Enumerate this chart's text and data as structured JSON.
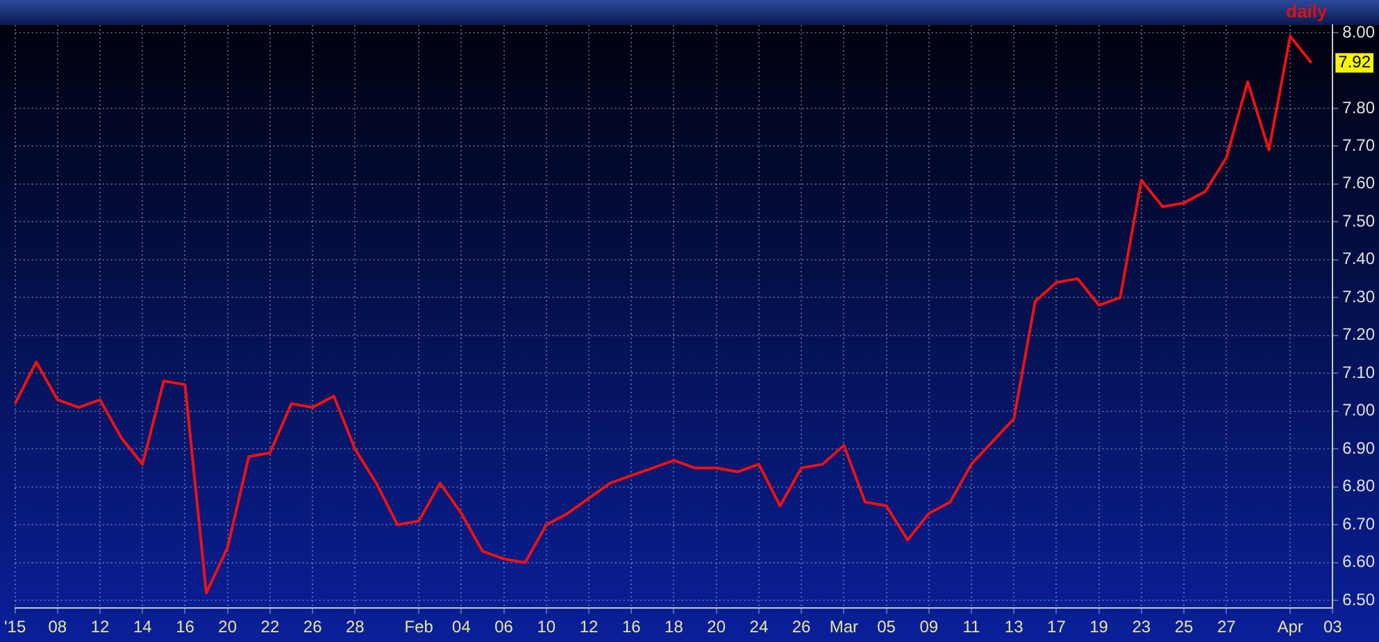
{
  "chart_data": {
    "type": "line",
    "categories": [
      "'15",
      null,
      "08",
      null,
      "12",
      null,
      "14",
      null,
      "16",
      null,
      "20",
      null,
      "22",
      null,
      "26",
      null,
      "28",
      null,
      null,
      "Feb",
      null,
      "04",
      null,
      "06",
      null,
      "10",
      null,
      "12",
      null,
      "16",
      null,
      "18",
      null,
      "20",
      null,
      "24",
      null,
      "26",
      null,
      "Mar",
      null,
      "05",
      null,
      "09",
      null,
      "11",
      null,
      "13",
      null,
      "17",
      null,
      "19",
      null,
      "23",
      null,
      "25",
      null,
      "27",
      null,
      null,
      "Apr",
      null,
      "03"
    ],
    "series": [
      {
        "color": "#ee1111",
        "values": [
          7.02,
          7.13,
          7.03,
          7.01,
          7.03,
          6.93,
          6.86,
          7.08,
          7.07,
          6.52,
          6.64,
          6.88,
          6.89,
          7.02,
          7.01,
          7.04,
          6.9,
          6.81,
          6.7,
          6.71,
          6.81,
          6.73,
          6.63,
          6.61,
          6.6,
          6.7,
          6.73,
          6.77,
          6.81,
          6.83,
          6.85,
          6.87,
          6.85,
          6.85,
          6.84,
          6.86,
          6.75,
          6.85,
          6.86,
          6.91,
          6.76,
          6.75,
          6.66,
          6.73,
          6.76,
          6.86,
          6.92,
          6.98,
          7.29,
          7.34,
          7.35,
          7.28,
          7.3,
          7.61,
          7.54,
          7.55,
          7.58,
          7.67,
          7.87,
          7.69,
          7.99,
          7.92,
          null
        ]
      }
    ],
    "ylim": [
      6.48,
      8.02
    ],
    "yticks": [
      {
        "value": 6.5,
        "label": "6.50"
      },
      {
        "value": 6.6,
        "label": "6.60"
      },
      {
        "value": 6.7,
        "label": "6.70"
      },
      {
        "value": 6.8,
        "label": "6.80"
      },
      {
        "value": 6.9,
        "label": "6.90"
      },
      {
        "value": 7.0,
        "label": "7.00"
      },
      {
        "value": 7.1,
        "label": "7.10"
      },
      {
        "value": 7.2,
        "label": "7.20"
      },
      {
        "value": 7.3,
        "label": "7.30"
      },
      {
        "value": 7.4,
        "label": "7.40"
      },
      {
        "value": 7.5,
        "label": "7.50"
      },
      {
        "value": 7.6,
        "label": "7.60"
      },
      {
        "value": 7.7,
        "label": "7.70"
      },
      {
        "value": 7.8,
        "label": "7.80"
      },
      {
        "value": 8.0,
        "label": "8.00"
      }
    ],
    "grid": true,
    "marker": "none",
    "line_style": "solid",
    "legend": false,
    "annotations": [
      "daily",
      {
        "text": "7.92",
        "y": 7.92
      }
    ]
  }
}
